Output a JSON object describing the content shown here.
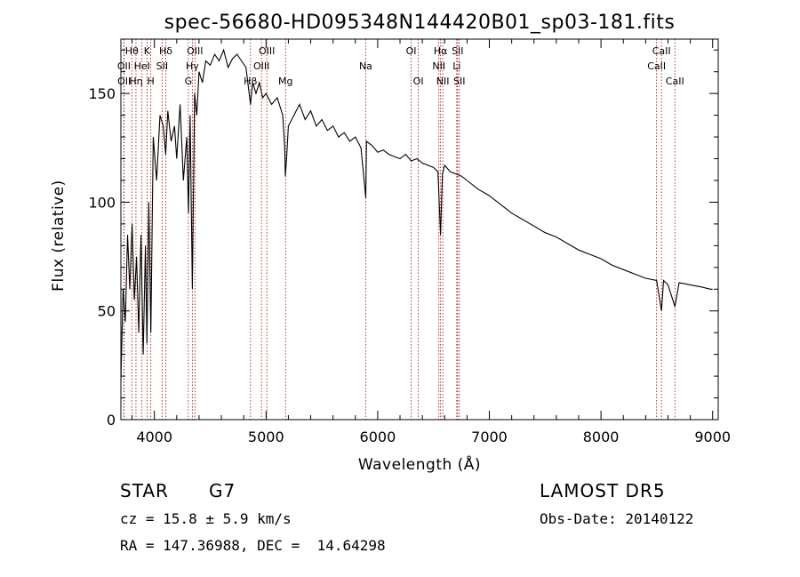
{
  "chart_data": {
    "type": "line",
    "title": "spec-56680-HD095348N144420B01_sp03-181.fits",
    "xlabel": "Wavelength (Å)",
    "ylabel": "Flux (relative)",
    "xlim": [
      3700,
      9050
    ],
    "ylim": [
      0,
      175
    ],
    "x_ticks": [
      4000,
      5000,
      6000,
      7000,
      8000,
      9000
    ],
    "y_ticks": [
      0,
      50,
      100,
      150
    ],
    "grid": false,
    "legend": "none",
    "line_color": "#000000",
    "marker_color": "#aa0000",
    "series": [
      {
        "x": [
          3700,
          3720,
          3740,
          3760,
          3780,
          3800,
          3820,
          3840,
          3860,
          3880,
          3900,
          3920,
          3933,
          3950,
          3968,
          3990,
          4020,
          4050,
          4080,
          4101,
          4120,
          4150,
          4180,
          4200,
          4230,
          4260,
          4290,
          4305,
          4320,
          4340,
          4360,
          4380,
          4400,
          4430,
          4460,
          4500,
          4540,
          4580,
          4620,
          4660,
          4700,
          4740,
          4780,
          4820,
          4861,
          4880,
          4910,
          4940,
          4970,
          5000,
          5050,
          5100,
          5150,
          5167,
          5173,
          5184,
          5200,
          5250,
          5300,
          5350,
          5400,
          5450,
          5500,
          5550,
          5600,
          5650,
          5700,
          5750,
          5800,
          5850,
          5893,
          5900,
          5950,
          6000,
          6050,
          6100,
          6150,
          6200,
          6250,
          6300,
          6350,
          6400,
          6450,
          6500,
          6540,
          6563,
          6580,
          6600,
          6650,
          6700,
          6750,
          6800,
          6900,
          7000,
          7100,
          7200,
          7300,
          7400,
          7500,
          7600,
          7700,
          7800,
          7900,
          8000,
          8100,
          8200,
          8300,
          8400,
          8498,
          8542,
          8560,
          8600,
          8662,
          8700,
          8800,
          8900,
          8980,
          9000
        ],
        "y": [
          18,
          60,
          45,
          85,
          60,
          90,
          55,
          75,
          40,
          85,
          30,
          80,
          35,
          100,
          40,
          130,
          110,
          140,
          135,
          122,
          142,
          128,
          135,
          120,
          145,
          110,
          130,
          95,
          140,
          60,
          150,
          140,
          160,
          155,
          165,
          163,
          168,
          165,
          170,
          162,
          166,
          168,
          165,
          162,
          145,
          155,
          150,
          155,
          148,
          150,
          145,
          148,
          140,
          125,
          112,
          120,
          135,
          140,
          145,
          138,
          142,
          135,
          138,
          133,
          135,
          130,
          132,
          128,
          130,
          125,
          102,
          128,
          126,
          123,
          124,
          122,
          121,
          120,
          122,
          119,
          120,
          118,
          117,
          116,
          114,
          85,
          113,
          117,
          114,
          113,
          112,
          110,
          106,
          103,
          99,
          95,
          92,
          89,
          86,
          84,
          81,
          78,
          76,
          74,
          71,
          69,
          67,
          65,
          64,
          50,
          64,
          62,
          52,
          63,
          62,
          61,
          60,
          60
        ]
      }
    ],
    "line_markers": [
      {
        "label": "Hθ",
        "x": 3798,
        "row": 1
      },
      {
        "label": "OII",
        "x": 3727,
        "row": 2
      },
      {
        "label": "OII",
        "x": 3729,
        "row": 3
      },
      {
        "label": "K",
        "x": 3934,
        "row": 1
      },
      {
        "label": "HeI",
        "x": 3889,
        "row": 2
      },
      {
        "label": "Hη",
        "x": 3835,
        "row": 3
      },
      {
        "label": "H",
        "x": 3968,
        "row": 3
      },
      {
        "label": "Hδ",
        "x": 4102,
        "row": 1
      },
      {
        "label": "SII",
        "x": 4069,
        "row": 2
      },
      {
        "label": "OIII",
        "x": 4363,
        "row": 1
      },
      {
        "label": "Hγ",
        "x": 4340,
        "row": 2
      },
      {
        "label": "G",
        "x": 4304,
        "row": 3
      },
      {
        "label": "OIII",
        "x": 5007,
        "row": 1
      },
      {
        "label": "OIII",
        "x": 4959,
        "row": 2
      },
      {
        "label": "Hβ",
        "x": 4861,
        "row": 3
      },
      {
        "label": "Mg",
        "x": 5175,
        "row": 3
      },
      {
        "label": "Na",
        "x": 5893,
        "row": 2
      },
      {
        "label": "OI",
        "x": 6300,
        "row": 1
      },
      {
        "label": "OI",
        "x": 6364,
        "row": 3
      },
      {
        "label": "Hα",
        "x": 6563,
        "row": 1
      },
      {
        "label": "NII",
        "x": 6548,
        "row": 2
      },
      {
        "label": "NII",
        "x": 6583,
        "row": 3
      },
      {
        "label": "SII",
        "x": 6716,
        "row": 1
      },
      {
        "label": "Li",
        "x": 6708,
        "row": 2
      },
      {
        "label": "SII",
        "x": 6731,
        "row": 3
      },
      {
        "label": "CaII",
        "x": 8542,
        "row": 1
      },
      {
        "label": "CaII",
        "x": 8498,
        "row": 2
      },
      {
        "label": "CaII",
        "x": 8662,
        "row": 3
      }
    ]
  },
  "info": {
    "class_label": "STAR",
    "subclass": "G7",
    "survey": "LAMOST DR5",
    "cz": "cz = 15.8 ± 5.9 km/s",
    "obs_date": "Obs-Date: 20140122",
    "coords": "RA = 147.36988, DEC =  14.64298"
  }
}
